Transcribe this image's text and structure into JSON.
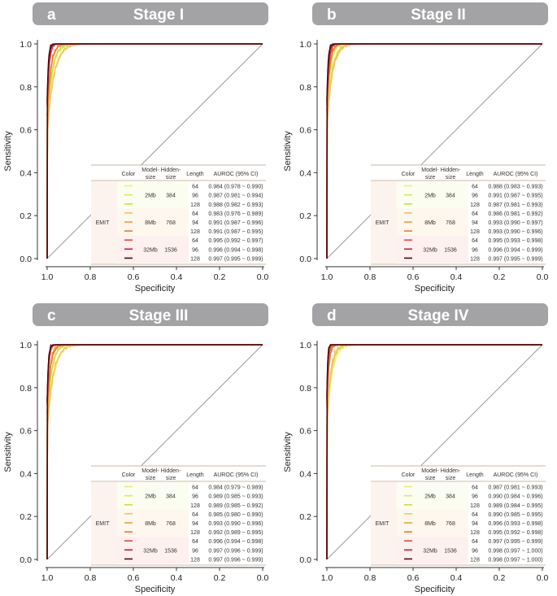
{
  "chart_data": [
    {
      "type": "line",
      "panel_letter": "a",
      "title": "Stage I",
      "xlabel": "Specificity",
      "ylabel": "Sensitivity",
      "xlim": [
        1.0,
        0.0
      ],
      "ylim": [
        0.0,
        1.0
      ],
      "x_ticks": [
        "1.0",
        "0.8",
        "0.6",
        "0.4",
        "0.2",
        "0.0"
      ],
      "y_ticks": [
        "0.0",
        "0.2",
        "0.4",
        "0.6",
        "0.8",
        "1.0"
      ],
      "table": {
        "headers": [
          "Color",
          "Model-size",
          "Hidden-size",
          "Length",
          "AUROC (95% CI)"
        ],
        "group_label": "EMIT",
        "model_groups": [
          {
            "model": "2Mb",
            "hidden": "384"
          },
          {
            "model": "8Mb",
            "hidden": "768"
          },
          {
            "model": "32Mb",
            "hidden": "1536"
          }
        ],
        "rows": [
          {
            "color": "#e6ef7a",
            "length": "64",
            "auroc": "0.984 (0.978 ~ 0.990)"
          },
          {
            "color": "#dde85c",
            "length": "96",
            "auroc": "0.987 (0.981 ~ 0.994)"
          },
          {
            "color": "#cbdd3c",
            "length": "128",
            "auroc": "0.988 (0.982 ~ 0.993)"
          },
          {
            "color": "#f4c167",
            "length": "64",
            "auroc": "0.983 (0.976 ~ 0.989)"
          },
          {
            "color": "#f29d3c",
            "length": "94",
            "auroc": "0.991 (0.987 ~ 0.996)"
          },
          {
            "color": "#ea7a2a",
            "length": "128",
            "auroc": "0.991 (0.987 ~ 0.995)"
          },
          {
            "color": "#de4a3c",
            "length": "64",
            "auroc": "0.995 (0.992 ~ 0.997)"
          },
          {
            "color": "#b52036",
            "length": "96",
            "auroc": "0.996 (0.994 ~ 0.998)"
          },
          {
            "color": "#4a0a0e",
            "length": "128",
            "auroc": "0.997 (0.995 ~ 0.999)"
          }
        ]
      }
    },
    {
      "type": "line",
      "panel_letter": "b",
      "title": "Stage II",
      "xlabel": "Specificity",
      "ylabel": "Sensitivity",
      "xlim": [
        1.0,
        0.0
      ],
      "ylim": [
        0.0,
        1.0
      ],
      "x_ticks": [
        "1.0",
        "0.8",
        "0.6",
        "0.4",
        "0.2",
        "0.0"
      ],
      "y_ticks": [
        "0.0",
        "0.2",
        "0.4",
        "0.6",
        "0.8",
        "1.0"
      ],
      "table": {
        "headers": [
          "Color",
          "Model-size",
          "Hidden-size",
          "Length",
          "AUROC (95% CI)"
        ],
        "group_label": "EMIT",
        "model_groups": [
          {
            "model": "2Mb",
            "hidden": "384"
          },
          {
            "model": "8Mb",
            "hidden": "768"
          },
          {
            "model": "32Mb",
            "hidden": "1536"
          }
        ],
        "rows": [
          {
            "color": "#e6ef7a",
            "length": "64",
            "auroc": "0.988 (0.983 ~ 0.993)"
          },
          {
            "color": "#dde85c",
            "length": "96",
            "auroc": "0.991 (0.987 ~ 0.995)"
          },
          {
            "color": "#cbdd3c",
            "length": "128",
            "auroc": "0.987 (0.981 ~ 0.993)"
          },
          {
            "color": "#f4c167",
            "length": "64",
            "auroc": "0.986 (0.981 ~ 0.992)"
          },
          {
            "color": "#f29d3c",
            "length": "94",
            "auroc": "0.993 (0.990 ~ 0.997)"
          },
          {
            "color": "#ea7a2a",
            "length": "128",
            "auroc": "0.993 (0.990 ~ 0.996)"
          },
          {
            "color": "#de4a3c",
            "length": "64",
            "auroc": "0.995 (0.993 ~ 0.998)"
          },
          {
            "color": "#b52036",
            "length": "96",
            "auroc": "0.996 (0.994 ~ 0.999)"
          },
          {
            "color": "#4a0a0e",
            "length": "128",
            "auroc": "0.997 (0.995 ~ 0.999)"
          }
        ]
      }
    },
    {
      "type": "line",
      "panel_letter": "c",
      "title": "Stage III",
      "xlabel": "Specificity",
      "ylabel": "Sensitivity",
      "xlim": [
        1.0,
        0.0
      ],
      "ylim": [
        0.0,
        1.0
      ],
      "x_ticks": [
        "1.0",
        "0.8",
        "0.6",
        "0.4",
        "0.2",
        "0.0"
      ],
      "y_ticks": [
        "0.0",
        "0.2",
        "0.4",
        "0.6",
        "0.8",
        "1.0"
      ],
      "table": {
        "headers": [
          "Color",
          "Model-size",
          "Hidden-size",
          "Length",
          "AUROC (95% CI)"
        ],
        "group_label": "EMIT",
        "model_groups": [
          {
            "model": "2Mb",
            "hidden": "384"
          },
          {
            "model": "8Mb",
            "hidden": "768"
          },
          {
            "model": "32Mb",
            "hidden": "1536"
          }
        ],
        "rows": [
          {
            "color": "#e6ef7a",
            "length": "64",
            "auroc": "0.984 (0.979 ~ 0.989)"
          },
          {
            "color": "#dde85c",
            "length": "96",
            "auroc": "0.989 (0.985 ~ 0.993)"
          },
          {
            "color": "#cbdd3c",
            "length": "128",
            "auroc": "0.989 (0.985 ~ 0.992)"
          },
          {
            "color": "#f4c167",
            "length": "64",
            "auroc": "0.985 (0.980 ~ 0.990)"
          },
          {
            "color": "#f29d3c",
            "length": "94",
            "auroc": "0.993 (0.990 ~ 0.996)"
          },
          {
            "color": "#ea7a2a",
            "length": "128",
            "auroc": "0.992 (0.989 ~ 0.995)"
          },
          {
            "color": "#de4a3c",
            "length": "64",
            "auroc": "0.996 (0.994 ~ 0.998)"
          },
          {
            "color": "#b52036",
            "length": "96",
            "auroc": "0.997 (0.996 ~ 0.999)"
          },
          {
            "color": "#4a0a0e",
            "length": "128",
            "auroc": "0.997 (0.996 ~ 0.999)"
          }
        ]
      }
    },
    {
      "type": "line",
      "panel_letter": "d",
      "title": "Stage IV",
      "xlabel": "Specificity",
      "ylabel": "Sensitivity",
      "xlim": [
        1.0,
        0.0
      ],
      "ylim": [
        0.0,
        1.0
      ],
      "x_ticks": [
        "1.0",
        "0.8",
        "0.6",
        "0.4",
        "0.2",
        "0.0"
      ],
      "y_ticks": [
        "0.0",
        "0.2",
        "0.4",
        "0.6",
        "0.8",
        "1.0"
      ],
      "table": {
        "headers": [
          "Color",
          "Model-size",
          "Hidden-size",
          "Length",
          "AUROC (95% CI)"
        ],
        "group_label": "EMIT",
        "model_groups": [
          {
            "model": "2Mb",
            "hidden": "384"
          },
          {
            "model": "8Mb",
            "hidden": "768"
          },
          {
            "model": "32Mb",
            "hidden": "1536"
          }
        ],
        "rows": [
          {
            "color": "#e6ef7a",
            "length": "64",
            "auroc": "0.987 (0.981 ~ 0.993)"
          },
          {
            "color": "#dde85c",
            "length": "96",
            "auroc": "0.990 (0.984 ~ 0.996)"
          },
          {
            "color": "#cbdd3c",
            "length": "128",
            "auroc": "0.989 (0.984 ~ 0.995)"
          },
          {
            "color": "#f4c167",
            "length": "64",
            "auroc": "0.990 (0.985 ~ 0.995)"
          },
          {
            "color": "#f29d3c",
            "length": "94",
            "auroc": "0.996 (0.993 ~ 0.998)"
          },
          {
            "color": "#ea7a2a",
            "length": "128",
            "auroc": "0.995 (0.992 ~ 0.998)"
          },
          {
            "color": "#de4a3c",
            "length": "64",
            "auroc": "0.997 (0.995 ~ 0.999)"
          },
          {
            "color": "#b52036",
            "length": "96",
            "auroc": "0.998 (0.997 ~ 1.000)"
          },
          {
            "color": "#4a0a0e",
            "length": "128",
            "auroc": "0.998 (0.997 ~ 1.000)"
          }
        ]
      }
    }
  ]
}
